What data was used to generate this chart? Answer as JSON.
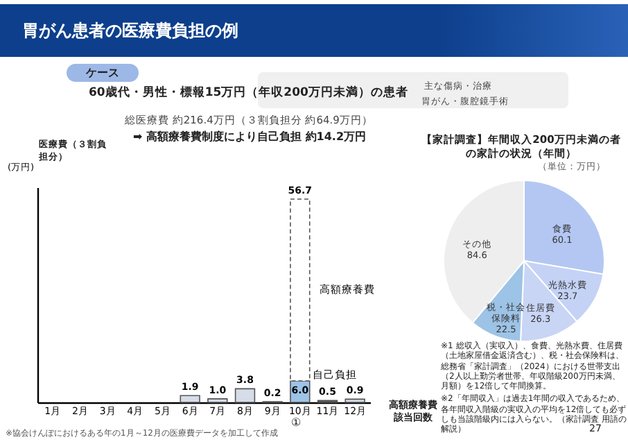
{
  "chart_data": [
    {
      "type": "bar",
      "title": "胃がん患者の医療費負担の例",
      "ylabel": "(万円)",
      "xlabel": "高額療養費該当回数",
      "categories": [
        "1月",
        "2月",
        "3月",
        "4月",
        "5月",
        "6月",
        "7月",
        "8月",
        "9月",
        "10月",
        "11月",
        "12月"
      ],
      "stacked": true,
      "totals": [
        null,
        null,
        null,
        null,
        null,
        null,
        null,
        null,
        null,
        "56.7",
        null,
        null
      ],
      "series": [
        {
          "name": "自己負担",
          "colors": [
            null,
            null,
            null,
            null,
            null,
            "#d6dce8",
            "#d6dce8",
            "#d6dce8",
            "#555555",
            "#9dc3e6",
            "#555555",
            "#d6dce8"
          ],
          "values": [
            null,
            null,
            null,
            null,
            null,
            1.9,
            1.0,
            3.8,
            0.2,
            6.0,
            0.5,
            0.9
          ],
          "value_labels": [
            null,
            null,
            null,
            null,
            null,
            "1.9",
            "1.0",
            "3.8",
            "0.2",
            "6.0",
            "0.5",
            "0.9"
          ]
        },
        {
          "name": "高額療養費",
          "color": "#ffffff",
          "line_style": "dashed",
          "values": [
            null,
            null,
            null,
            null,
            null,
            null,
            null,
            null,
            null,
            50.7,
            null,
            null
          ]
        }
      ],
      "annotations": [
        "ケース",
        "60歳代・男性・標報15万円（年収200万円未満）の患者",
        "主な傷病・治療",
        "胃がん・腹腔鏡手術",
        "総医療費 約216.4万円（３割負担分 約64.9万円）",
        "➡ 高額療養費制度により自己負担 約14.2万円",
        "医療費（３割負担分）",
        "①",
        "※協会けんぽにおけるある年の1月～12月の医療費データを加工して作成",
        "27"
      ]
    },
    {
      "type": "pie",
      "title": "【家計調査】年間収入200万円未満の者の家計の状況（年間）",
      "subtitle": "（単位：万円）",
      "categories": [
        "食費",
        "光熱水費",
        "住居費",
        "税・社会保険料",
        "その他"
      ],
      "values": [
        60.1,
        23.7,
        26.3,
        22.5,
        84.6
      ],
      "colors": [
        "#b4c7f2",
        "#c4d2f5",
        "#c9d5f5",
        "#9dc3e6",
        "#eeeeee"
      ],
      "data_labels": true,
      "annotations": [
        "※1 総収入（実収入）、食費、光熱水費、住居費（土地家屋借金返済含む）、税・社会保険料は、総務省「家計調査」（2024）における世帯支出（2人以上勤労者世帯、年収階級200万円未満、月額）を12倍して年間換算。",
        "※2「年間収入」は過去1年間の収入であるため、各年間収入階級の実収入の平均を12倍しても必ずしも当該階級内には入らない。（家計調査 用語の解説）"
      ]
    }
  ]
}
